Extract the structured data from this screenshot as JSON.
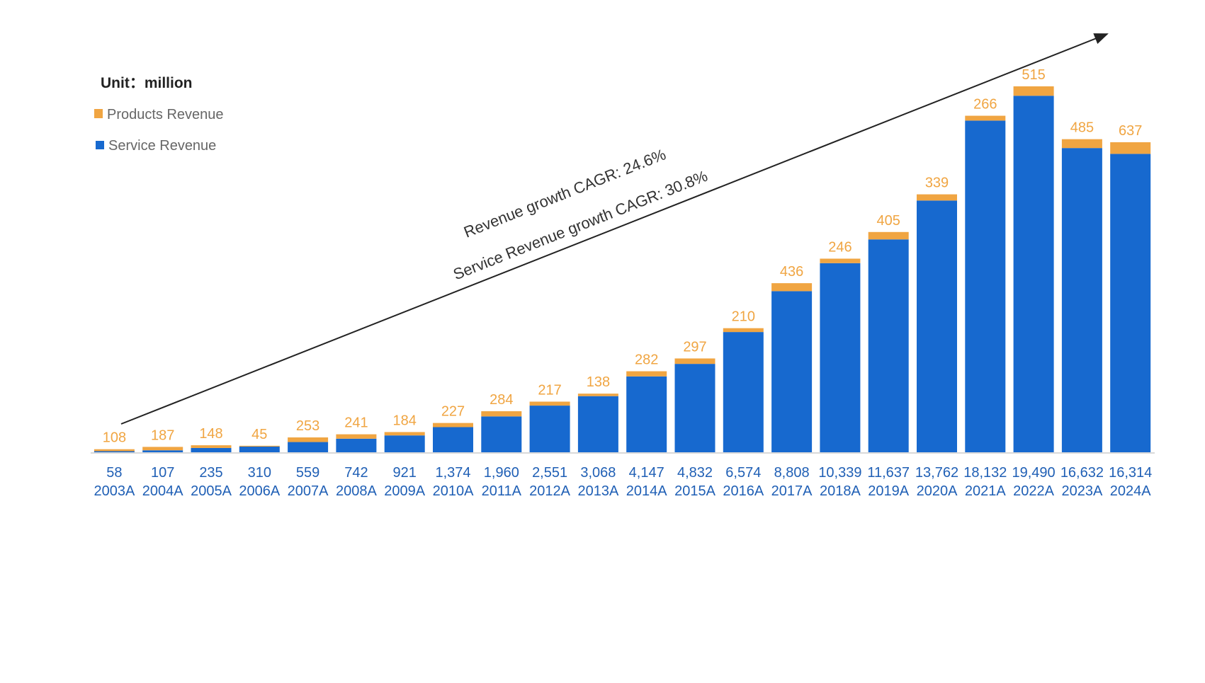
{
  "chart_data": {
    "type": "bar",
    "stacked": true,
    "unit_label": "Unit：million",
    "categories": [
      "2003A",
      "2004A",
      "2005A",
      "2006A",
      "2007A",
      "2008A",
      "2009A",
      "2010A",
      "2011A",
      "2012A",
      "2013A",
      "2014A",
      "2015A",
      "2016A",
      "2017A",
      "2018A",
      "2019A",
      "2020A",
      "2021A",
      "2022A",
      "2023A",
      "2024A"
    ],
    "series": [
      {
        "name": "Service Revenue",
        "color": "#1769CF",
        "values": [
          58,
          107,
          235,
          310,
          559,
          742,
          921,
          1374,
          1960,
          2551,
          3068,
          4147,
          4832,
          6574,
          8808,
          10339,
          11637,
          13762,
          18132,
          19490,
          16632,
          16314
        ],
        "labels": [
          "58",
          "107",
          "235",
          "310",
          "559",
          "742",
          "921",
          "1,374",
          "1,960",
          "2,551",
          "3,068",
          "4,147",
          "4,832",
          "6,574",
          "8,808",
          "10,339",
          "11,637",
          "13,762",
          "18,132",
          "19,490",
          "16,632",
          "16,314"
        ]
      },
      {
        "name": "Products Revenue",
        "color": "#F0A542",
        "values": [
          108,
          187,
          148,
          45,
          253,
          241,
          184,
          227,
          284,
          217,
          138,
          282,
          297,
          210,
          436,
          246,
          405,
          339,
          266,
          515,
          485,
          637
        ],
        "labels": [
          "108",
          "187",
          "148",
          "45",
          "253",
          "241",
          "184",
          "227",
          "284",
          "217",
          "138",
          "282",
          "297",
          "210",
          "436",
          "246",
          "405",
          "339",
          "266",
          "515",
          "485",
          "637"
        ]
      }
    ],
    "legend": [
      "Products Revenue",
      "Service Revenue"
    ],
    "legend_position": "top-left",
    "annotations": [
      "Revenue growth CAGR:   24.6%",
      "Service Revenue growth CAGR:   30.8%"
    ],
    "grid": false,
    "ylim": [
      0,
      20005
    ]
  }
}
